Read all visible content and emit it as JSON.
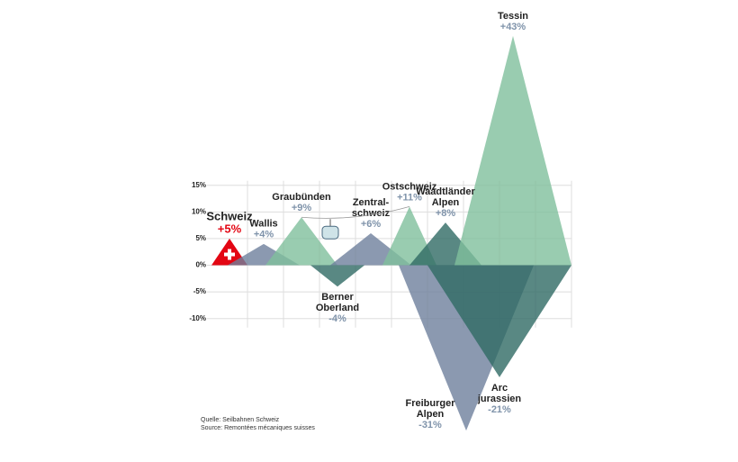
{
  "chart_data": {
    "type": "mountain",
    "categories": [
      [
        "Schweiz"
      ],
      [
        "Wallis"
      ],
      [
        "Graubünden"
      ],
      [
        "Berner",
        "Oberland"
      ],
      [
        "Zentral-",
        "schweiz"
      ],
      [
        "Ostschweiz"
      ],
      [
        "Waadtländer",
        "Alpen"
      ],
      [
        "Freiburger",
        "Alpen"
      ],
      [
        "Tessin"
      ],
      [
        "Arc",
        "jurassien"
      ]
    ],
    "values": [
      5,
      4,
      9,
      -4,
      6,
      11,
      8,
      -31,
      43,
      -21
    ],
    "value_labels": [
      "+5%",
      "+4%",
      "+9%",
      "-4%",
      "+6%",
      "+11%",
      "+8%",
      "-31%",
      "+43%",
      "-21%"
    ],
    "colors": [
      "#e30613",
      "#6e809c",
      "#7fbf9c",
      "#2f6a64",
      "#6e809c",
      "#7fbf9c",
      "#2f6a64",
      "#6e809c",
      "#7fbf9c",
      "#2f6a64"
    ],
    "ylim": [
      -32,
      44
    ],
    "yticks": [
      {
        "value": -10,
        "label": "-10%"
      },
      {
        "value": -5,
        "label": "-5%"
      },
      {
        "value": 0,
        "label": "0%"
      },
      {
        "value": 5,
        "label": "5%"
      },
      {
        "value": 10,
        "label": "10%"
      },
      {
        "value": 15,
        "label": "15%"
      }
    ],
    "grid": true
  },
  "source": [
    "Quelle: Seilbahnen Schweiz",
    "Source: Remontées mécaniques suisses"
  ]
}
